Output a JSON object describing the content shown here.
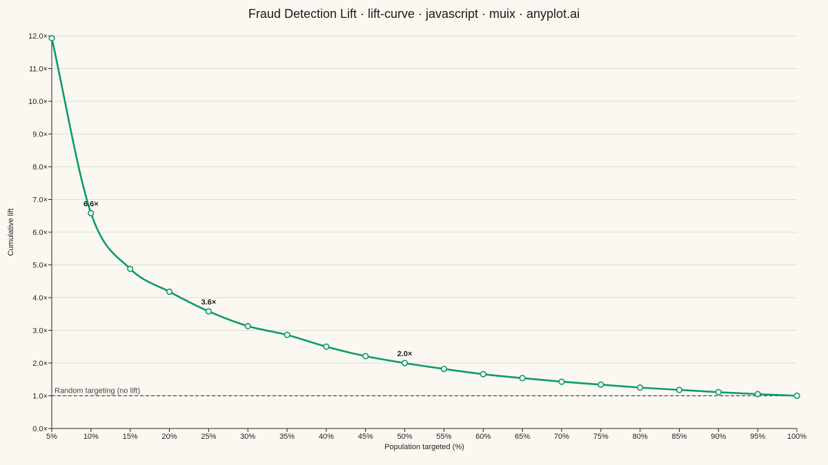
{
  "chart_data": {
    "type": "line",
    "title": "Fraud Detection Lift · lift-curve · javascript · muix · anyplot.ai",
    "xlabel": "Population targeted (%)",
    "ylabel": "Cumulative lift",
    "x": [
      5,
      10,
      15,
      20,
      25,
      30,
      35,
      40,
      45,
      50,
      55,
      60,
      65,
      70,
      75,
      80,
      85,
      90,
      95,
      100
    ],
    "x_tick_labels": [
      "5%",
      "10%",
      "15%",
      "20%",
      "25%",
      "30%",
      "35%",
      "40%",
      "45%",
      "50%",
      "55%",
      "60%",
      "65%",
      "70%",
      "75%",
      "80%",
      "85%",
      "90%",
      "95%",
      "100%"
    ],
    "xlim": [
      5,
      100
    ],
    "y_ticks": [
      0,
      1,
      2,
      3,
      4,
      5,
      6,
      7,
      8,
      9,
      10,
      11,
      12
    ],
    "y_tick_labels": [
      "0.0×",
      "1.0×",
      "2.0×",
      "3.0×",
      "4.0×",
      "5.0×",
      "6.0×",
      "7.0×",
      "8.0×",
      "9.0×",
      "10.0×",
      "11.0×",
      "12.0×"
    ],
    "ylim": [
      0,
      12
    ],
    "grid": true,
    "series": [
      {
        "color": "#0B9A6D",
        "values": [
          11.93,
          6.58,
          4.88,
          4.18,
          3.58,
          3.13,
          2.86,
          2.5,
          2.21,
          2.0,
          1.82,
          1.66,
          1.54,
          1.43,
          1.34,
          1.25,
          1.18,
          1.11,
          1.05,
          1.0
        ]
      }
    ],
    "baseline": {
      "value": 1.0,
      "label": "Random targeting (no lift)",
      "color": "#444444"
    },
    "annotations": [
      {
        "x": 10,
        "y": 6.58,
        "text": "6.6×"
      },
      {
        "x": 25,
        "y": 3.58,
        "text": "3.6×"
      },
      {
        "x": 50,
        "y": 2.0,
        "text": "2.0×"
      }
    ]
  }
}
